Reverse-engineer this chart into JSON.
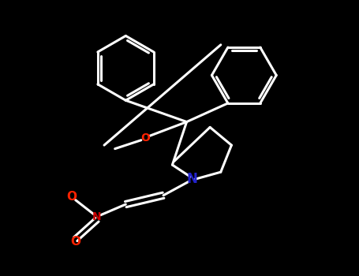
{
  "bg_color": "#000000",
  "bond_color": "#ffffff",
  "fg_line": "#0a0a0a",
  "lw": 2.2,
  "figsize": [
    4.55,
    3.5
  ],
  "dpi": 100,
  "xlim": [
    0,
    10
  ],
  "ylim": [
    0,
    7.7
  ],
  "O_color": "#ff2200",
  "N_amine_color": "#2222cc",
  "N_nitro_color": "#cc0000",
  "O_nitro_color": "#ff2200"
}
